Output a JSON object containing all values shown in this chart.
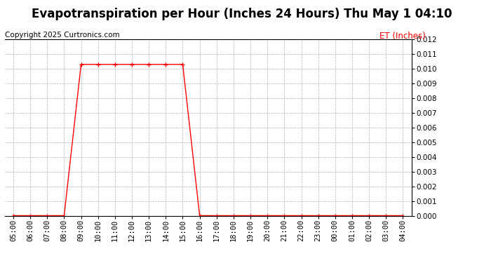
{
  "title": "Evapotranspiration per Hour (Inches 24 Hours) Thu May 1 04:10",
  "copyright": "Copyright 2025 Curtronics.com",
  "ylabel": "ET (Inches)",
  "ylabel_color": "#ff0000",
  "background_color": "#ffffff",
  "grid_color": "#aaaaaa",
  "line_color": "#ff0000",
  "marker_color": "#ff0000",
  "hours": [
    "05:00",
    "06:00",
    "07:00",
    "08:00",
    "09:00",
    "10:00",
    "11:00",
    "12:00",
    "13:00",
    "14:00",
    "15:00",
    "16:00",
    "17:00",
    "18:00",
    "19:00",
    "20:00",
    "21:00",
    "22:00",
    "23:00",
    "00:00",
    "01:00",
    "02:00",
    "03:00",
    "04:00"
  ],
  "values": [
    0.0,
    0.0,
    0.0,
    0.0,
    0.0103,
    0.0103,
    0.0103,
    0.0103,
    0.0103,
    0.0103,
    0.0103,
    0.0,
    0.0,
    0.0,
    0.0,
    0.0,
    0.0,
    0.0,
    0.0,
    0.0,
    0.0,
    0.0,
    0.0,
    0.0
  ],
  "ylim": [
    0.0,
    0.012
  ],
  "yticks": [
    0.0,
    0.001,
    0.002,
    0.003,
    0.004,
    0.005,
    0.006,
    0.007,
    0.008,
    0.009,
    0.01,
    0.011,
    0.012
  ],
  "title_fontsize": 12,
  "copyright_fontsize": 7.5,
  "ylabel_fontsize": 8.5,
  "tick_fontsize": 7.5
}
